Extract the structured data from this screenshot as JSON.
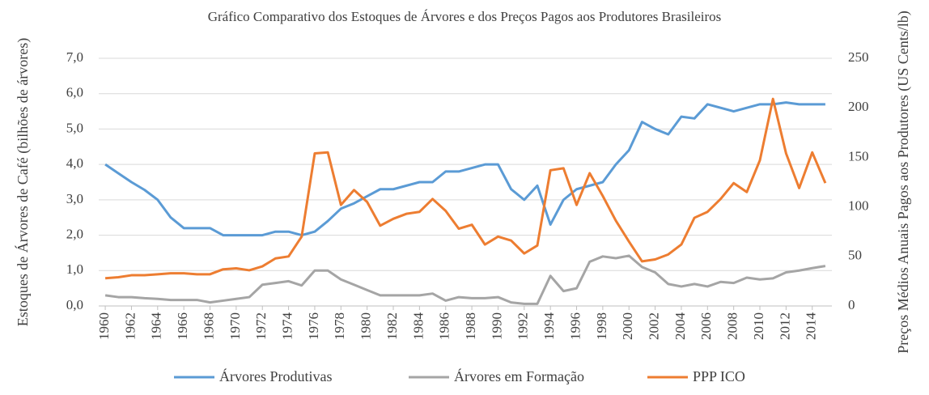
{
  "chart_data": {
    "type": "line",
    "title": "Gráfico Comparativo dos Estoques de Árvores e dos Preços Pagos aos Produtores Brasileiros",
    "ylabel": "Estoques de Árvores de Café (bilhões de árvores)",
    "y2label": "Preços Médios Anuais Pagos aos Produtores (US Cents/lb)",
    "x": [
      1960,
      1961,
      1962,
      1963,
      1964,
      1965,
      1966,
      1967,
      1968,
      1969,
      1970,
      1971,
      1972,
      1973,
      1974,
      1975,
      1976,
      1977,
      1978,
      1979,
      1980,
      1981,
      1982,
      1983,
      1984,
      1985,
      1986,
      1987,
      1988,
      1989,
      1990,
      1991,
      1992,
      1993,
      1994,
      1995,
      1996,
      1997,
      1998,
      1999,
      2000,
      2001,
      2002,
      2003,
      2004,
      2005,
      2006,
      2007,
      2008,
      2009,
      2010,
      2011,
      2012,
      2013,
      2014,
      2015
    ],
    "xlim": [
      1959.5,
      2015.5
    ],
    "xticks": [
      1960,
      1962,
      1964,
      1966,
      1968,
      1970,
      1972,
      1974,
      1976,
      1978,
      1980,
      1982,
      1984,
      1986,
      1988,
      1990,
      1992,
      1994,
      1996,
      1998,
      2000,
      2002,
      2004,
      2006,
      2008,
      2010,
      2012,
      2014
    ],
    "ylim": [
      0,
      7
    ],
    "yticks": [
      {
        "value": 0,
        "label": "0,0"
      },
      {
        "value": 1,
        "label": "1,0"
      },
      {
        "value": 2,
        "label": "2,0"
      },
      {
        "value": 3,
        "label": "3,0"
      },
      {
        "value": 4,
        "label": "4,0"
      },
      {
        "value": 5,
        "label": "5,0"
      },
      {
        "value": 6,
        "label": "6,0"
      },
      {
        "value": 7,
        "label": "7,0"
      }
    ],
    "y2lim": [
      0,
      250
    ],
    "y2ticks": [
      0,
      50,
      100,
      150,
      200,
      250
    ],
    "grid": true,
    "legend": "bottom",
    "series": [
      {
        "name": "Árvores Produtivas",
        "color": "#5b9bd5",
        "values": [
          4.0,
          3.75,
          3.5,
          3.28,
          3.0,
          2.5,
          2.2,
          2.2,
          2.2,
          2.0,
          2.0,
          2.0,
          2.0,
          2.1,
          2.1,
          2.0,
          2.1,
          2.4,
          2.75,
          2.9,
          3.1,
          3.3,
          3.3,
          3.4,
          3.5,
          3.5,
          3.8,
          3.8,
          3.9,
          4.0,
          4.0,
          3.3,
          3.0,
          3.4,
          2.3,
          3.0,
          3.3,
          3.4,
          3.5,
          4.0,
          4.4,
          5.2,
          5.0,
          4.85,
          5.35,
          5.3,
          5.7,
          5.6,
          5.5,
          5.6,
          5.7,
          5.7,
          5.75,
          5.7,
          5.7,
          5.7
        ]
      },
      {
        "name": "Árvores em Formação",
        "color": "#a5a5a5",
        "values": [
          0.3,
          0.25,
          0.25,
          0.22,
          0.2,
          0.17,
          0.17,
          0.17,
          0.1,
          0.15,
          0.2,
          0.25,
          0.6,
          0.65,
          0.7,
          0.58,
          1.0,
          1.0,
          0.75,
          0.6,
          0.45,
          0.3,
          0.3,
          0.3,
          0.3,
          0.35,
          0.15,
          0.25,
          0.22,
          0.22,
          0.25,
          0.1,
          0.06,
          0.06,
          0.85,
          0.42,
          0.5,
          1.25,
          1.4,
          1.35,
          1.42,
          1.1,
          0.95,
          0.62,
          0.55,
          0.62,
          0.55,
          0.68,
          0.65,
          0.8,
          0.75,
          0.78,
          0.95,
          1.0,
          1.07,
          1.13
        ]
      },
      {
        "name": "PPP ICO",
        "color": "#ed7d31",
        "axis": "y2",
        "values": [
          28,
          29,
          31,
          31,
          32,
          33,
          33,
          32,
          32,
          37,
          38,
          36,
          40,
          48,
          50,
          70,
          154,
          155,
          102,
          117,
          105,
          81,
          88,
          93,
          95,
          108,
          96,
          78,
          82,
          62,
          70,
          66,
          53,
          61,
          137,
          139,
          102,
          134,
          111,
          86,
          65,
          45,
          47,
          52,
          62,
          89,
          95,
          108,
          124,
          115,
          147,
          209,
          154,
          119,
          155,
          124
        ]
      }
    ]
  }
}
